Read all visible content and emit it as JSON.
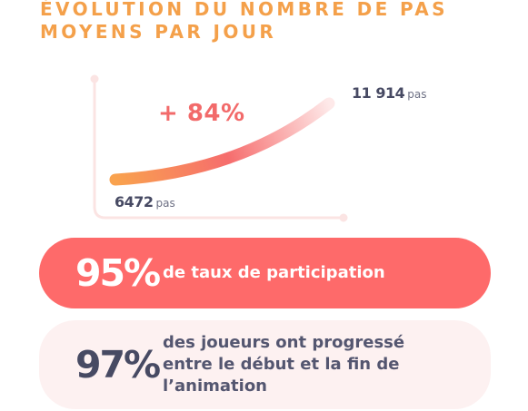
{
  "title": {
    "line1": "ÉVOLUTION DU NOMBRE DE PAS",
    "line2": "MOYENS PAR JOUR"
  },
  "chart_data": {
    "type": "line",
    "start": {
      "value": "6472",
      "unit": "pas"
    },
    "end": {
      "value": "11 914",
      "unit": "pas"
    },
    "change": "+ 84%"
  },
  "stats": [
    {
      "value": "95%",
      "label": "de taux de participation"
    },
    {
      "value": "97%",
      "label": "des joueurs ont progressé entre le début et la fin de l’animation"
    }
  ],
  "colors": {
    "title": "#f4a04a",
    "accent": "#fe6a6a",
    "curve_start": "#f9a24e",
    "curve_mid": "#f66d6d",
    "light_pink": "#fdf1f1",
    "dark_text": "#474a63"
  }
}
